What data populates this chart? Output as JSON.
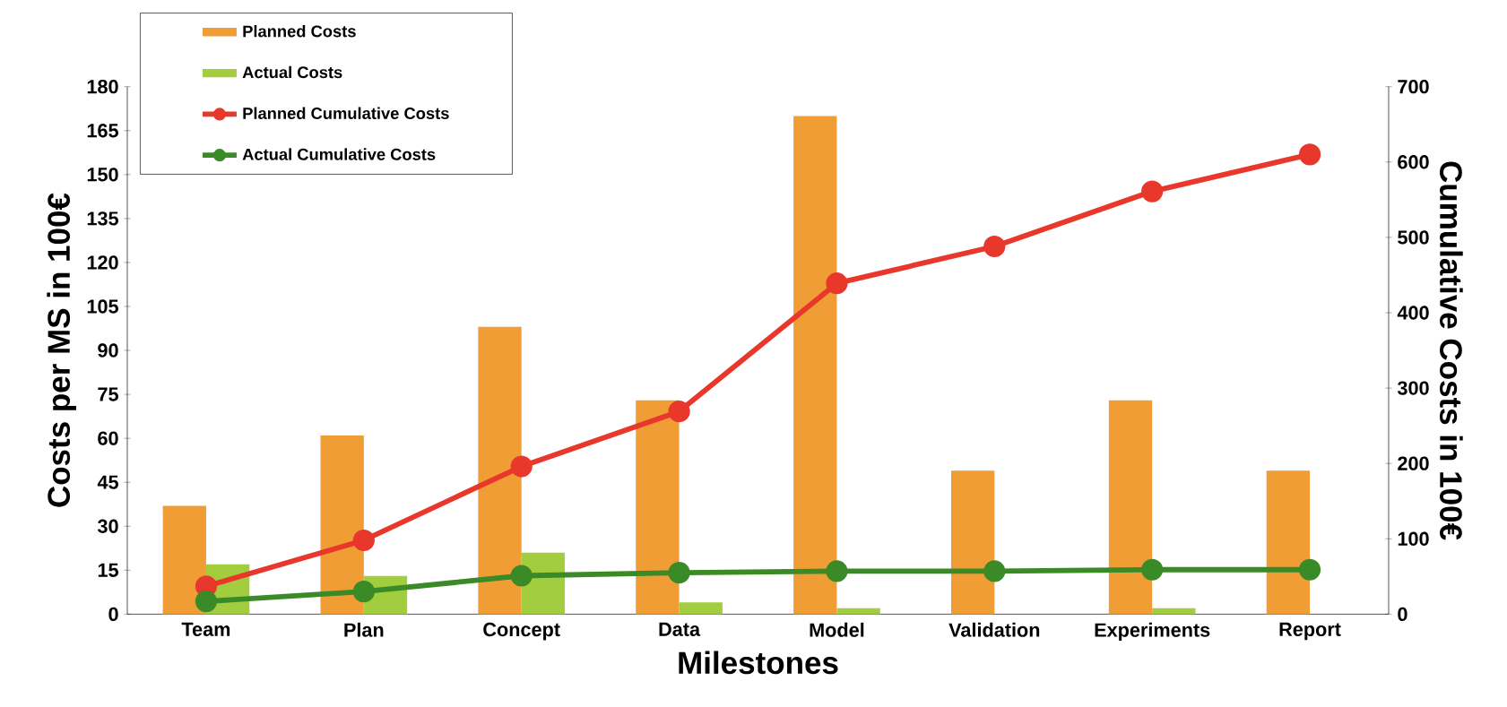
{
  "chart_data": {
    "type": "bar",
    "xlabel": "Milestones",
    "ylabel": "Costs per MS in 100€",
    "y2label": "Cumulative Costs in 100€",
    "categories": [
      "Team",
      "Plan",
      "Concept",
      "Data",
      "Model",
      "Validation",
      "Experiments",
      "Report"
    ],
    "series": [
      {
        "name": "Planned Costs",
        "color": "#f09d36",
        "values": [
          37,
          61,
          98,
          73,
          170,
          49,
          73,
          49
        ]
      },
      {
        "name": "Actual Costs",
        "color": "#a2cd3f",
        "values": [
          17,
          13,
          21,
          4,
          2,
          0,
          2,
          0
        ]
      },
      {
        "name": "Planned Cumulative Costs",
        "type": "line",
        "axis": "y2",
        "color": "#e8372b",
        "values": [
          37,
          98,
          196,
          269,
          439,
          488,
          561,
          610
        ]
      },
      {
        "name": "Actual Cumulative Costs",
        "type": "line",
        "axis": "y2",
        "color": "#3a8a27",
        "values": [
          17,
          30,
          51,
          55,
          57,
          57,
          59,
          59
        ]
      }
    ],
    "ylim": [
      0,
      180
    ],
    "yticks": [
      0,
      15,
      30,
      45,
      60,
      75,
      90,
      105,
      120,
      135,
      150,
      165,
      180
    ],
    "y2lim": [
      0,
      700
    ],
    "y2ticks": [
      0,
      100,
      200,
      300,
      400,
      500,
      600,
      700
    ],
    "marker": "circle",
    "line_style": "solid",
    "legend": "top left",
    "grid": false
  }
}
